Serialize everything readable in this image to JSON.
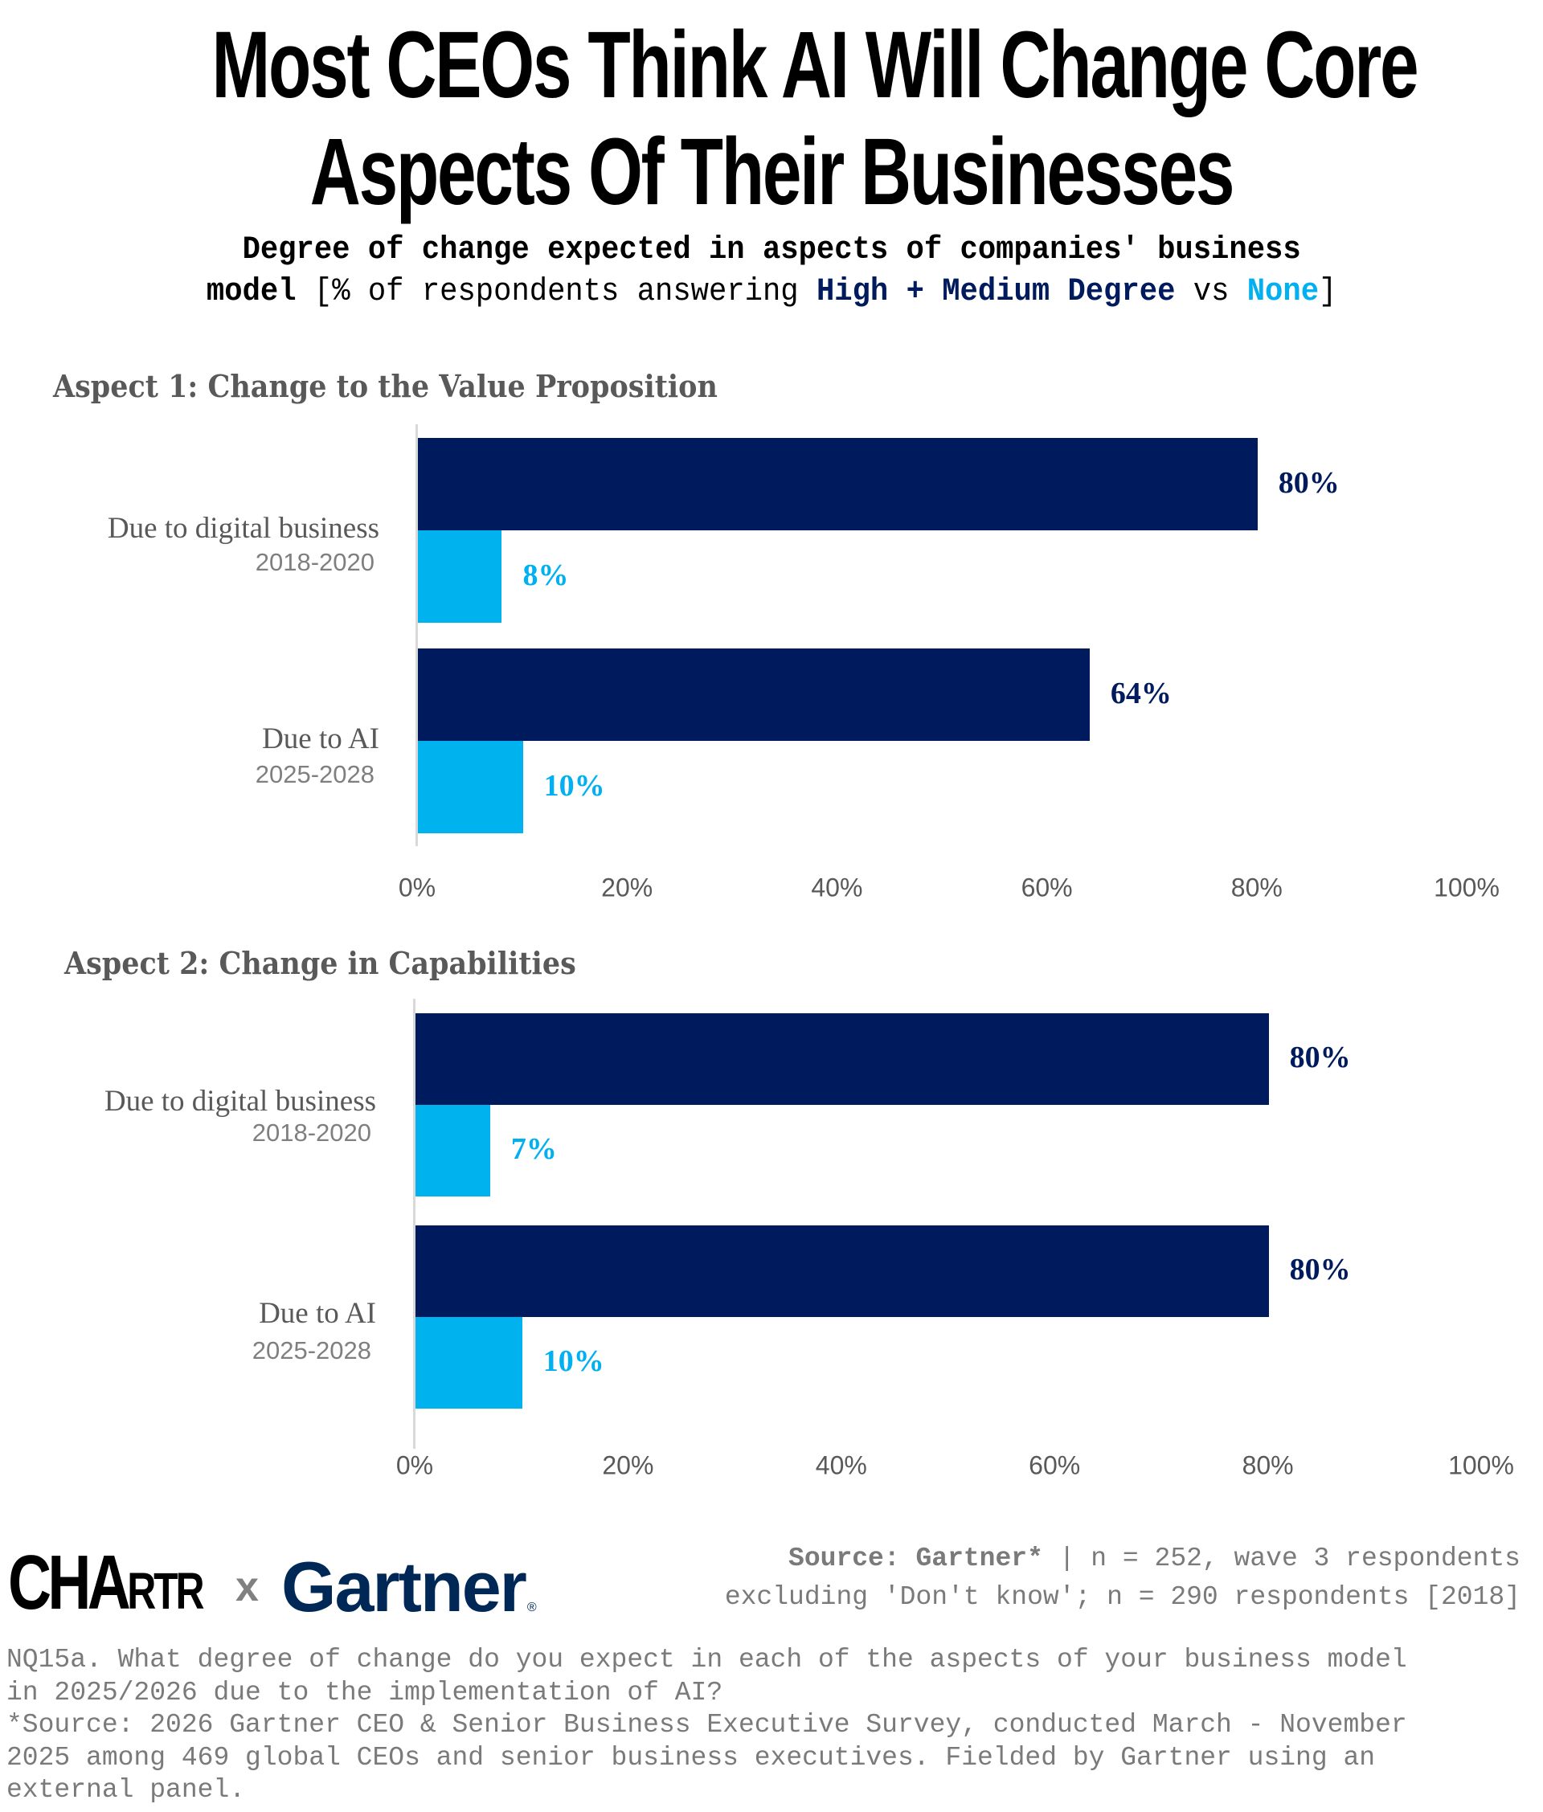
{
  "header": {
    "title_line1": "Most CEOs Think AI Will Change Core",
    "title_line2": "Aspects Of Their Businesses",
    "subtitle_bold": "Degree of change expected in aspects of companies' business",
    "subtitle_line2_bold": "model",
    "subtitle_line2_text": " [% of respondents answering ",
    "subtitle_highlight_high": "High + Medium Degree",
    "subtitle_vs": " vs ",
    "subtitle_highlight_none": "None",
    "subtitle_close": "]"
  },
  "colors": {
    "high_medium": "#001a5e",
    "none": "#00b0f0",
    "axis_label": "#595959",
    "footnote": "#7a7a7a"
  },
  "chart_data": [
    {
      "type": "bar",
      "orientation": "horizontal",
      "title": "Aspect 1: Change to the Value Proposition",
      "categories": [
        {
          "label": "Due to digital business",
          "period": "2018-2020"
        },
        {
          "label": "Due to AI",
          "period": "2025-2028"
        }
      ],
      "series": [
        {
          "name": "High + Medium Degree",
          "values": [
            80,
            64
          ],
          "labels": [
            "80%",
            "64%"
          ]
        },
        {
          "name": "None",
          "values": [
            8,
            10
          ],
          "labels": [
            "8%",
            "10%"
          ]
        }
      ],
      "xlim": [
        0,
        100
      ],
      "xticks": [
        "0%",
        "20%",
        "40%",
        "60%",
        "80%",
        "100%"
      ],
      "xlabel": "",
      "ylabel": "",
      "grid": false
    },
    {
      "type": "bar",
      "orientation": "horizontal",
      "title": "Aspect 2: Change in Capabilities",
      "categories": [
        {
          "label": "Due to digital business",
          "period": "2018-2020"
        },
        {
          "label": "Due to AI",
          "period": "2025-2028"
        }
      ],
      "series": [
        {
          "name": "High + Medium Degree",
          "values": [
            80,
            80
          ],
          "labels": [
            "80%",
            "80%"
          ]
        },
        {
          "name": "None",
          "values": [
            7,
            10
          ],
          "labels": [
            "7%",
            "10%"
          ]
        }
      ],
      "xlim": [
        0,
        100
      ],
      "xticks": [
        "0%",
        "20%",
        "40%",
        "60%",
        "80%",
        "100%"
      ],
      "xlabel": "",
      "ylabel": "",
      "grid": false
    }
  ],
  "footer": {
    "logo_chartr": "CHA",
    "logo_chartr_small": "RTR",
    "logo_x": "x",
    "logo_gartner": "Gartner",
    "logo_gartner_mark": "®",
    "source_bold": "Source: Gartner*",
    "source_line1_rest": " | n = 252, wave 3 respondents",
    "source_line2": "excluding 'Don't know'; n = 290 respondents [2018]",
    "footnote_lines": [
      "NQ15a. What degree of change do you expect in each of the aspects of your business model",
      "in 2025/2026 due to the implementation of AI?",
      "*Source: 2026 Gartner CEO & Senior Business Executive Survey, conducted March - November",
      "2025 among 469 global CEOs and senior business executives. Fielded by Gartner using an",
      "external panel."
    ]
  }
}
